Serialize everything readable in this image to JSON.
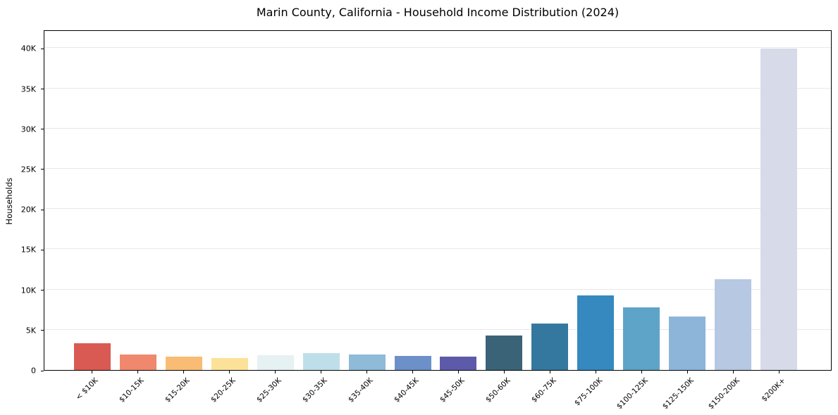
{
  "chart_data": {
    "type": "bar",
    "title": "Marin County, California - Household Income Distribution (2024)",
    "xlabel": "",
    "ylabel": "Households",
    "categories": [
      "< $10K",
      "$10-15K",
      "$15-20K",
      "$20-25K",
      "$25-30K",
      "$30-35K",
      "$35-40K",
      "$40-45K",
      "$45-50K",
      "$50-60K",
      "$60-75K",
      "$75-100K",
      "$100-125K",
      "$125-150K",
      "$150-200K",
      "$200K+"
    ],
    "values": [
      3300,
      1950,
      1650,
      1450,
      1850,
      2150,
      1950,
      1800,
      1650,
      4300,
      5800,
      9300,
      7800,
      6700,
      11300,
      40100
    ],
    "bar_colors": [
      "#d95a52",
      "#f0886d",
      "#f9bc74",
      "#fce199",
      "#e6f1f3",
      "#bedfe9",
      "#8fbad8",
      "#6d90c8",
      "#5d5ba9",
      "#3b6378",
      "#35789f",
      "#3689bf",
      "#5ea4c8",
      "#8db5da",
      "#b6c8e2",
      "#d7dae8"
    ],
    "y_ticks": [
      {
        "value": 0,
        "label": "0"
      },
      {
        "value": 5000,
        "label": "5K"
      },
      {
        "value": 10000,
        "label": "10K"
      },
      {
        "value": 15000,
        "label": "15K"
      },
      {
        "value": 20000,
        "label": "20K"
      },
      {
        "value": 25000,
        "label": "25K"
      },
      {
        "value": 30000,
        "label": "30K"
      },
      {
        "value": 35000,
        "label": "35K"
      },
      {
        "value": 40000,
        "label": "40K"
      }
    ],
    "ylim": [
      0,
      42300
    ],
    "grid": "horizontal",
    "gridline_color": "#e8e8e8",
    "axis_color": "#000000",
    "legend": "none"
  }
}
